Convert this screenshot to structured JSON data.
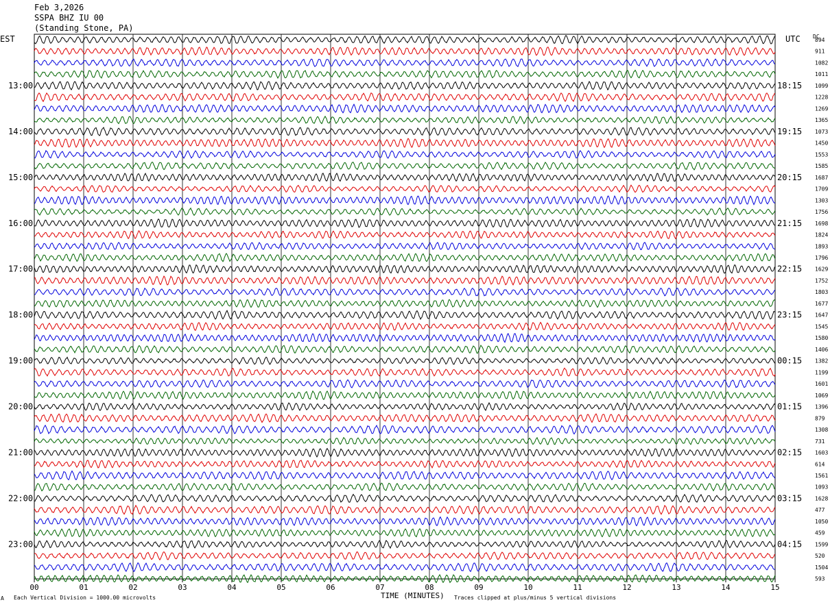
{
  "header": {
    "date": "Feb 3,2026",
    "station": "SSPA BHZ IU 00",
    "location": "(Standing Stone, PA)"
  },
  "left_zone": "EST",
  "right_zone": "UTC",
  "dc_label": "DC",
  "colors": {
    "cycle": [
      "#000000",
      "#e00000",
      "#0000dd",
      "#006600"
    ],
    "grid": "#000000"
  },
  "chart_data": {
    "type": "line",
    "title": "SSPA BHZ IU 00 (Standing Stone, PA)",
    "xlabel": "TIME (MINUTES)",
    "x_ticks": [
      "00",
      "01",
      "02",
      "03",
      "04",
      "05",
      "06",
      "07",
      "08",
      "09",
      "10",
      "11",
      "12",
      "13",
      "14",
      "15"
    ],
    "xlim": [
      0,
      15
    ],
    "rows_per_hour": 4,
    "minutes_per_row": 15,
    "est_hours": [
      "13:00",
      "14:00",
      "15:00",
      "16:00",
      "17:00",
      "18:00",
      "19:00",
      "20:00",
      "21:00",
      "22:00",
      "23:00"
    ],
    "utc_hours": [
      "18:15",
      "19:15",
      "20:15",
      "21:15",
      "22:15",
      "23:15",
      "00:15",
      "01:15",
      "02:15",
      "03:15",
      "04:15"
    ],
    "dc_offsets": [
      "894",
      "911",
      "1082",
      "1011",
      "1099",
      "1228",
      "1269",
      "1365",
      "1073",
      "1450",
      "1553",
      "1585",
      "1687",
      "1709",
      "1303",
      "1756",
      "1698",
      "1824",
      "1893",
      "1796",
      "1629",
      "1752",
      "1803",
      "1677",
      "1647",
      "1545",
      "1580",
      "1406",
      "1382",
      "1199",
      "1601",
      "1069",
      "1396",
      "879",
      "1308",
      "731",
      "1603",
      "614",
      "1561",
      "1093",
      "1628",
      "477",
      "1050",
      "459",
      "1599",
      "520",
      "1504",
      "593"
    ],
    "series_colors": [
      "black",
      "red",
      "blue",
      "green"
    ],
    "trace_count": 48,
    "vertical_scale": "Each Vertical Division = 1000.00 microvolts",
    "clip_note": "Traces clipped at plus/minus 5 vertical divisions"
  },
  "footer": {
    "scale": "Each Vertical Division = 1000.00 microvolts",
    "clip": "Traces clipped at plus/minus 5 vertical divisions",
    "xtitle": "TIME (MINUTES)",
    "corner_mark": "A"
  }
}
